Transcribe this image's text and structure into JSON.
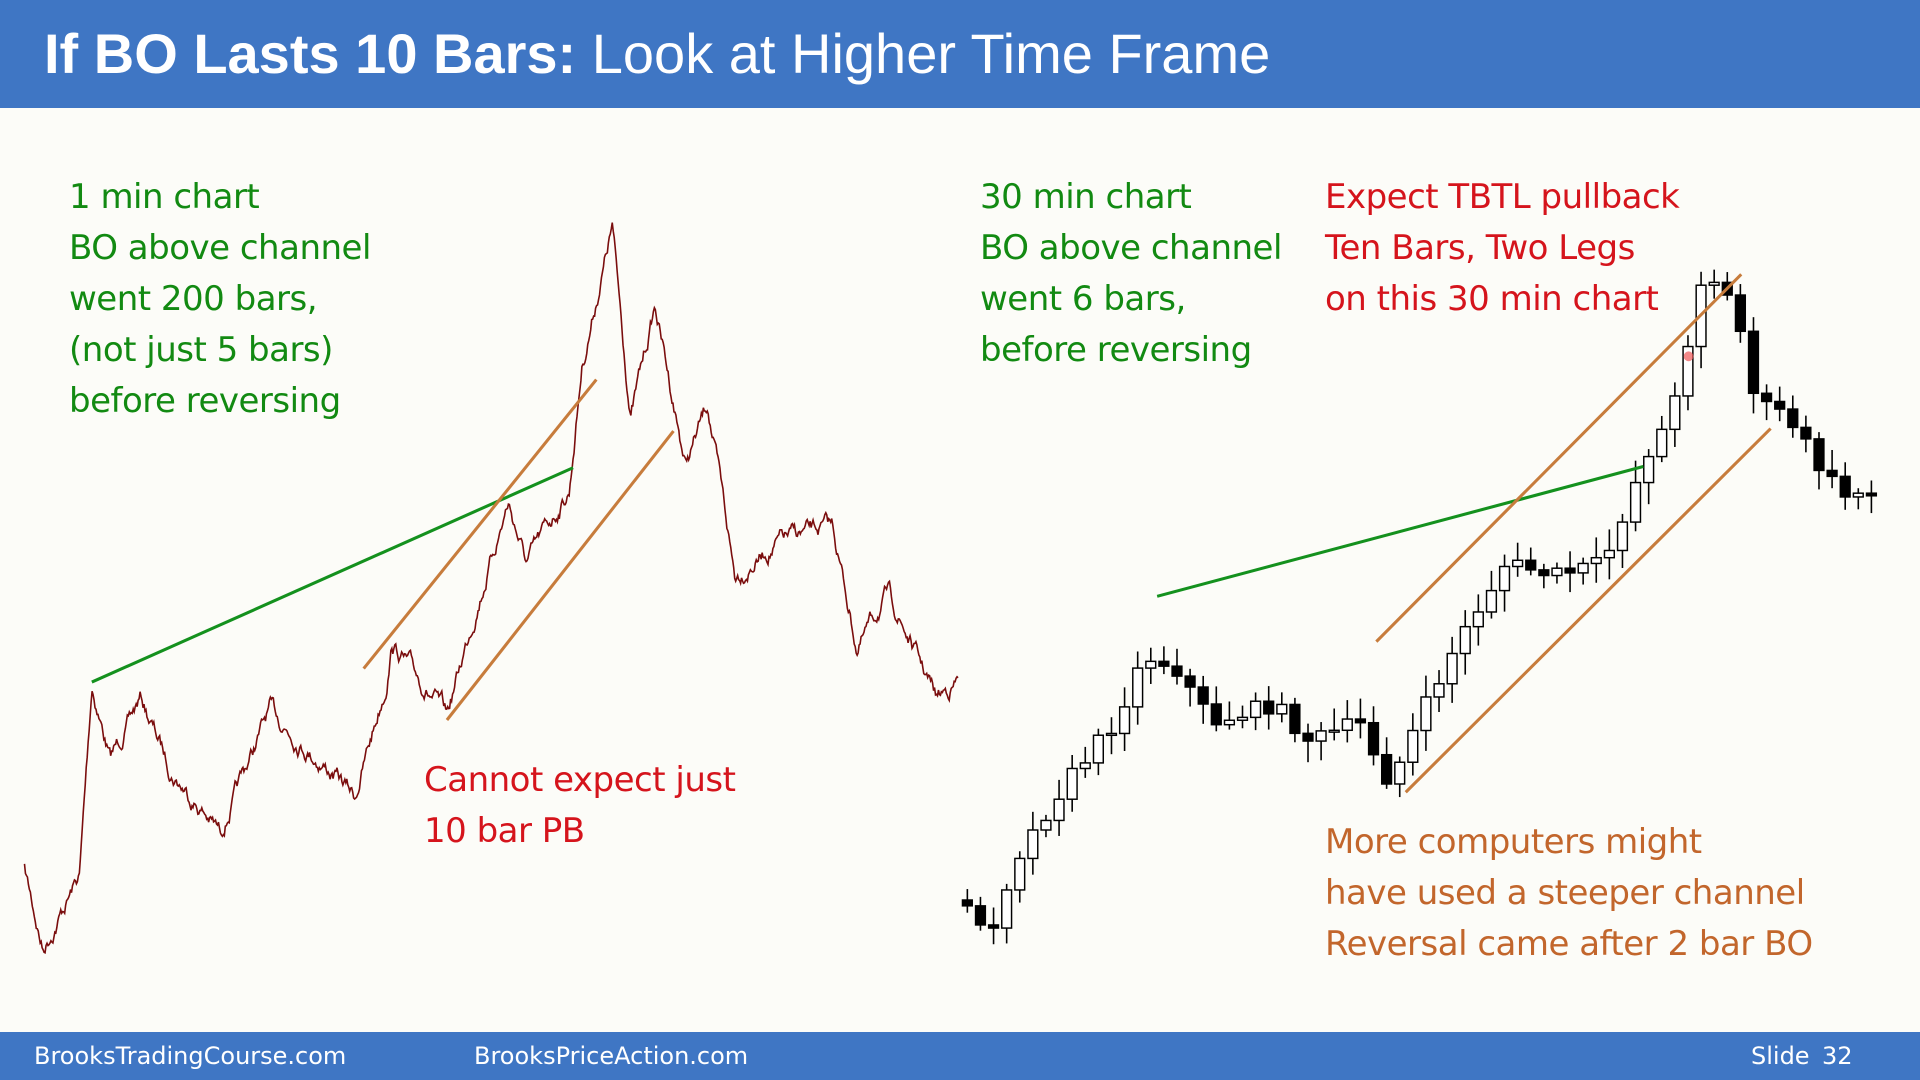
{
  "header": {
    "title_bold": "If BO Lasts 10 Bars:",
    "title_rest": "Look at Higher Time Frame"
  },
  "left_chart": {
    "notes": [
      "1 min chart",
      "BO above channel",
      "went 200 bars,",
      "(not just 5 bars)",
      "before reversing"
    ],
    "pb_note": [
      "Cannot expect just",
      "10 bar PB"
    ]
  },
  "right_chart": {
    "notes": [
      "30 min chart",
      "BO above channel",
      "went 6 bars,",
      "before reversing"
    ],
    "tbtl_note": [
      "Expect TBTL pullback",
      "Ten Bars, Two Legs",
      "on this 30 min chart"
    ],
    "computers_note": [
      "More computers might",
      "have used a steeper channel",
      "Reversal came after 2 bar BO"
    ]
  },
  "footer": {
    "left": "BrooksTradingCourse.com",
    "center": "BrooksPriceAction.com",
    "slide_label": "Slide",
    "slide_number": "32"
  }
}
